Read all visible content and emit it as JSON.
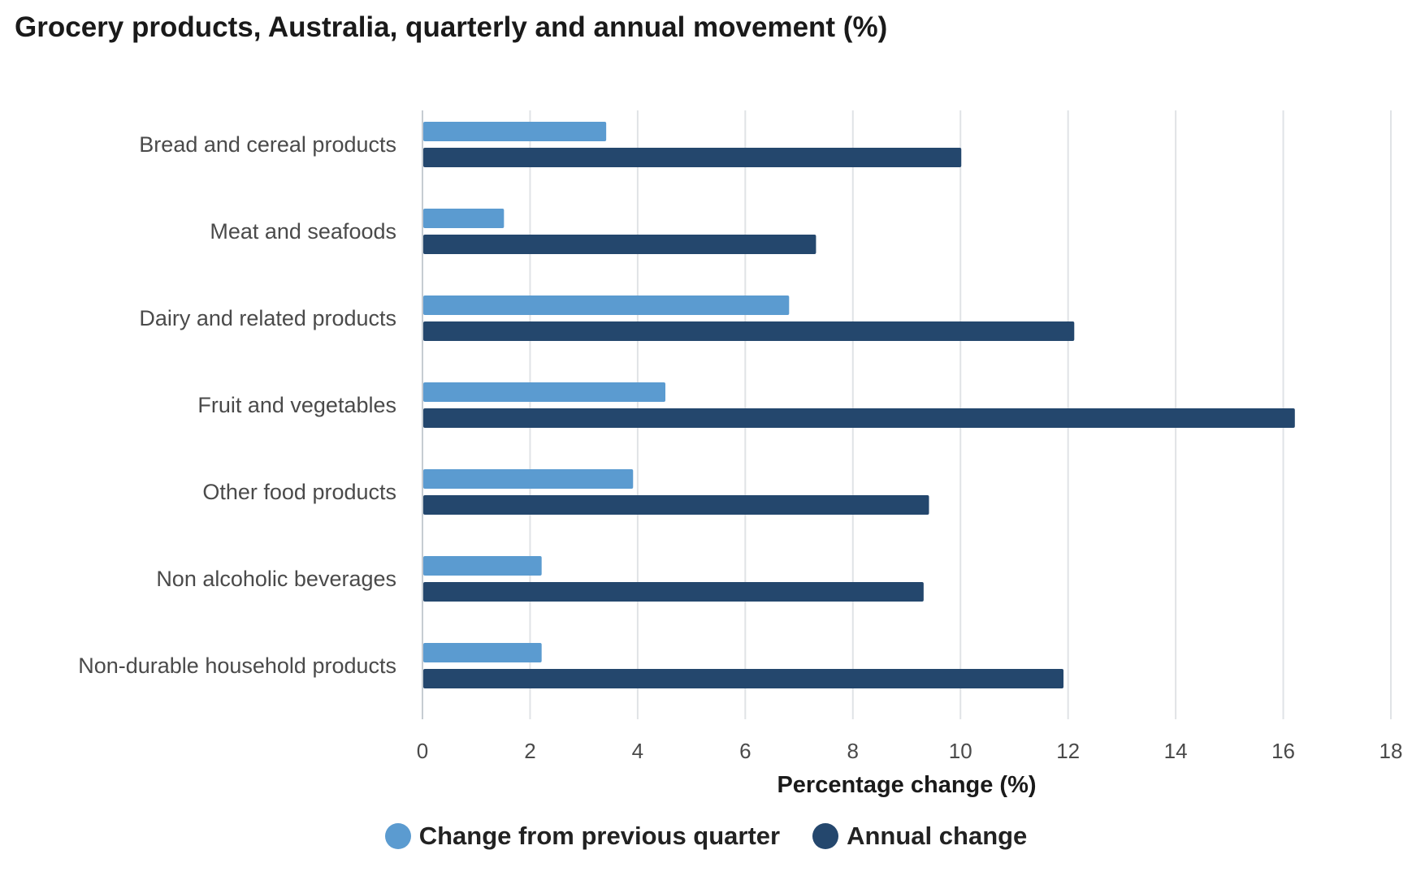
{
  "chart_data": {
    "type": "bar",
    "orientation": "horizontal",
    "title": "Grocery products, Australia, quarterly and annual movement (%)",
    "xlabel": "Percentage change (%)",
    "ylabel": "",
    "xlim": [
      0,
      18
    ],
    "ticks": [
      0,
      2,
      4,
      6,
      8,
      10,
      12,
      14,
      16,
      18
    ],
    "grid": true,
    "legend_position": "bottom-center",
    "categories": [
      "Bread and cereal products",
      "Meat and seafoods",
      "Dairy and related products",
      "Fruit and vegetables",
      "Other food products",
      "Non alcoholic beverages",
      "Non-durable household products"
    ],
    "series": [
      {
        "name": "Change from previous quarter",
        "color": "#5b9bd0",
        "values": [
          3.4,
          1.5,
          6.8,
          4.5,
          3.9,
          2.2,
          2.2
        ]
      },
      {
        "name": "Annual change",
        "color": "#24476d",
        "values": [
          10.0,
          7.3,
          12.1,
          16.2,
          9.4,
          9.3,
          11.9
        ]
      }
    ]
  },
  "colors": {
    "grid": "#e0e3e6",
    "axis": "#c6ccd2"
  }
}
